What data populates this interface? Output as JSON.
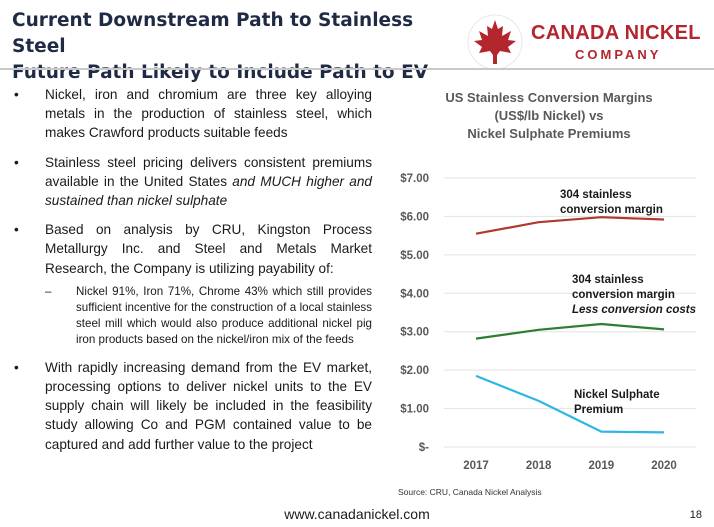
{
  "header": {
    "title_line1": "Current Downstream Path to Stainless Steel",
    "title_line2": "Future Path Likely to Include Path to EV"
  },
  "logo": {
    "name": "CANADA NICKEL",
    "sub": "COMPANY",
    "brand_color": "#b3262d"
  },
  "bullets": {
    "b1": "Nickel, iron and chromium are three key alloying metals in the production of stainless steel, which makes Crawford products suitable feeds",
    "b2_plain": "Stainless steel pricing delivers consistent premiums available in the United States ",
    "b2_italic": "and MUCH higher and sustained than nickel sulphate",
    "b3": "Based on analysis by CRU, Kingston Process Metallurgy Inc. and Steel and Metals Market Research, the Company is utilizing payability of:",
    "b3_sub": "Nickel 91%, Iron 71%, Chrome 43% which still provides sufficient incentive for the construction of a local stainless steel mill which would also produce additional nickel pig iron products based on the nickel/iron mix of the feeds",
    "b4": "With rapidly increasing demand from the EV market, processing options to deliver nickel units to the EV supply chain will likely be included in the feasibility study allowing Co and PGM contained value to be captured and add further value to the project"
  },
  "chart_data": {
    "type": "line",
    "title_lines": [
      "US Stainless Conversion Margins",
      "(US$/lb Nickel) vs",
      "Nickel Sulphate Premiums"
    ],
    "x": [
      "2017",
      "2018",
      "2019",
      "2020"
    ],
    "ylim": [
      0,
      7
    ],
    "y_ticks": [
      0,
      1,
      2,
      3,
      4,
      5,
      6,
      7
    ],
    "y_tick_labels": [
      "$-",
      "$1.00",
      "$2.00",
      "$3.00",
      "$4.00",
      "$5.00",
      "$6.00",
      "$7.00"
    ],
    "grid": "horizontal",
    "series": [
      {
        "name_lines": [
          "304 stainless",
          "conversion margin"
        ],
        "name_italic_line": "",
        "color": "#b03a2e",
        "values": [
          5.55,
          5.85,
          5.98,
          5.92
        ]
      },
      {
        "name_lines": [
          "304 stainless",
          "conversion margin"
        ],
        "name_italic_line": "Less conversion costs",
        "color": "#2e7d32",
        "values": [
          2.82,
          3.05,
          3.2,
          3.06
        ]
      },
      {
        "name_lines": [
          "Nickel Sulphate",
          "Premium"
        ],
        "name_italic_line": "",
        "color": "#2eb7e6",
        "values": [
          1.85,
          1.2,
          0.4,
          0.38
        ]
      }
    ],
    "source": "Source: CRU, Canada Nickel Analysis"
  },
  "footer": {
    "url": "www.canadanickel.com",
    "page": "18"
  }
}
